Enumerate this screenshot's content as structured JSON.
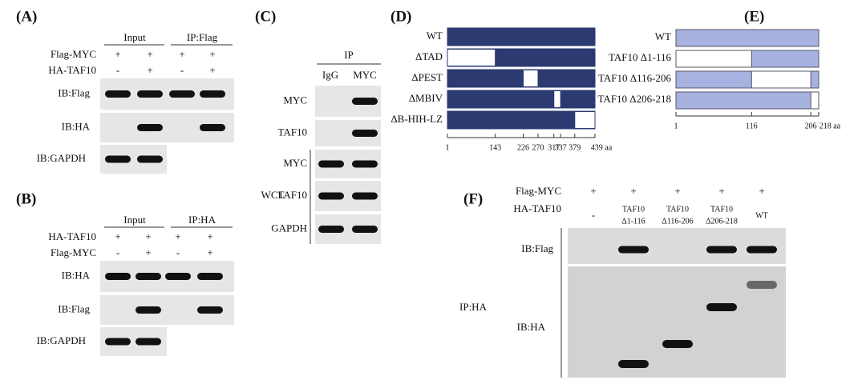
{
  "panel_a": {
    "label": "(A)",
    "groups": [
      "Input",
      "IP:Flag"
    ],
    "rows": [
      {
        "name": "Flag-MYC",
        "lanes": [
          "+",
          "+",
          "+",
          "+"
        ]
      },
      {
        "name": "HA-TAF10",
        "lanes": [
          "-",
          "+",
          "-",
          "+"
        ]
      }
    ],
    "blots": [
      "IB:Flag",
      "IB:HA",
      "IB:GAPDH"
    ]
  },
  "panel_b": {
    "label": "(B)",
    "groups": [
      "Input",
      "IP:HA"
    ],
    "rows": [
      {
        "name": "HA-TAF10",
        "lanes": [
          "+",
          "+",
          "+",
          "+"
        ]
      },
      {
        "name": "Flag-MYC",
        "lanes": [
          "-",
          "+",
          "-",
          "+"
        ]
      }
    ],
    "blots": [
      "IB:HA",
      "IB:Flag",
      "IB:GAPDH"
    ]
  },
  "panel_c": {
    "label": "(C)",
    "group": "IP",
    "lanes": [
      "IgG",
      "MYC"
    ],
    "blots": [
      "MYC",
      "TAF10",
      "MYC",
      "TAF10",
      "GAPDH"
    ],
    "side_label": "WCL"
  },
  "panel_d": {
    "label": "(D)",
    "constructs": [
      "WT",
      "ΔTAD",
      "ΔPEST",
      "ΔMBIV",
      "ΔB-HIH-LZ"
    ],
    "axis": [
      "1",
      "143",
      "226",
      "270",
      "317",
      "337",
      "379",
      "439 aa"
    ]
  },
  "panel_e": {
    "label": "(E)",
    "constructs": [
      "WT",
      "TAF10 Δ1-116",
      "TAF10 Δ116-206",
      "TAF10 Δ206-218"
    ],
    "axis": [
      "1",
      "116",
      "206",
      "218 aa"
    ]
  },
  "panel_f": {
    "label": "(F)",
    "rows": [
      {
        "name": "Flag-MYC",
        "lanes": [
          "+",
          "+",
          "+",
          "+",
          "+"
        ]
      },
      {
        "name": "HA-TAF10",
        "lanes": [
          [
            "-"
          ],
          [
            "TAF10",
            "Δ1-116"
          ],
          [
            "TAF10",
            "Δ116-206"
          ],
          [
            "TAF10",
            "Δ206-218"
          ],
          [
            "WT"
          ]
        ]
      }
    ],
    "blots": [
      "IB:Flag",
      "IB:HA"
    ],
    "side_label": "IP:HA"
  }
}
